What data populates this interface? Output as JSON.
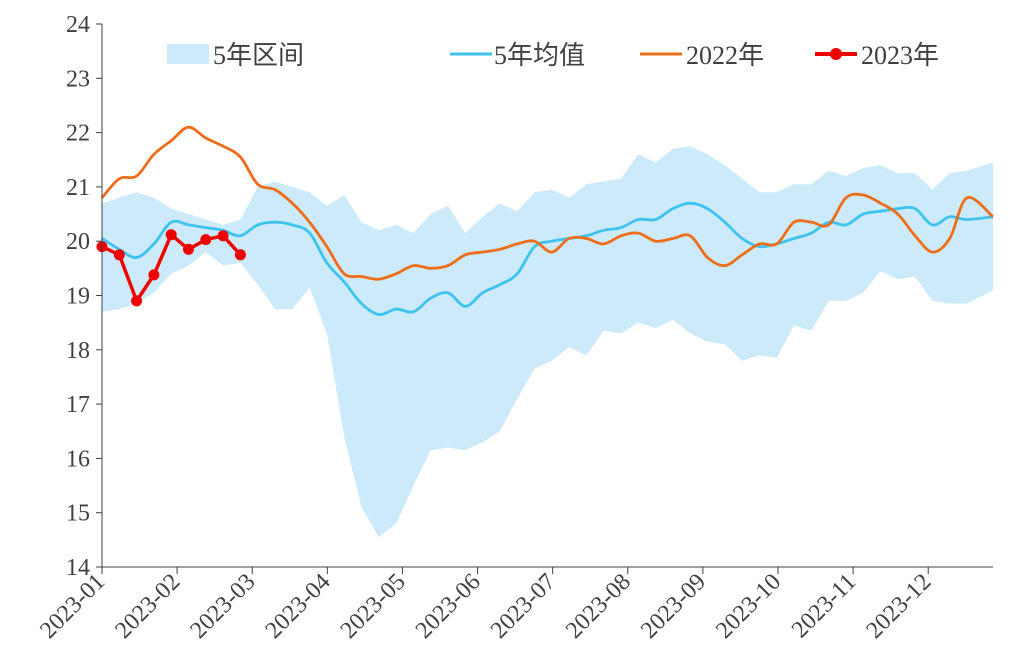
{
  "chart_data": {
    "type": "line",
    "title": "",
    "xlabel": "",
    "ylabel": "",
    "ylim": [
      14,
      24
    ],
    "y_ticks": [
      14,
      15,
      16,
      17,
      18,
      19,
      20,
      21,
      22,
      23,
      24
    ],
    "x_ticks": [
      "2023-01",
      "2023-02",
      "2023-03",
      "2023-04",
      "2023-05",
      "2023-06",
      "2023-07",
      "2023-08",
      "2023-09",
      "2023-10",
      "2023-11",
      "2023-12"
    ],
    "x_range_weeks": [
      0,
      51.5
    ],
    "grid": false,
    "legend_position": "top",
    "legend": {
      "band": "5年区间",
      "avg": "5年均值",
      "y2022": "2022年",
      "y2023": "2023年"
    },
    "colors": {
      "band": "#cdeafa",
      "avg": "#3ec3ee",
      "y2022": "#ee6d1a",
      "y2023": "#ee0000",
      "axis": "#404040"
    },
    "band": {
      "name": "5年区间",
      "upper": [
        [
          0,
          20.7
        ],
        [
          1,
          20.8
        ],
        [
          2,
          20.9
        ],
        [
          3,
          20.8
        ],
        [
          4,
          20.6
        ],
        [
          5,
          20.5
        ],
        [
          6,
          20.4
        ],
        [
          7,
          20.3
        ],
        [
          8,
          20.4
        ],
        [
          9,
          21.0
        ],
        [
          10,
          21.1
        ],
        [
          11,
          21.0
        ],
        [
          12,
          20.9
        ],
        [
          13,
          20.65
        ],
        [
          14,
          20.85
        ],
        [
          15,
          20.35
        ],
        [
          16,
          20.2
        ],
        [
          17,
          20.3
        ],
        [
          18,
          20.15
        ],
        [
          19,
          20.5
        ],
        [
          20,
          20.65
        ],
        [
          21,
          20.15
        ],
        [
          22,
          20.45
        ],
        [
          23,
          20.7
        ],
        [
          24,
          20.55
        ],
        [
          25,
          20.9
        ],
        [
          26,
          20.95
        ],
        [
          27,
          20.8
        ],
        [
          28,
          21.05
        ],
        [
          29,
          21.1
        ],
        [
          30,
          21.15
        ],
        [
          31,
          21.6
        ],
        [
          32,
          21.45
        ],
        [
          33,
          21.7
        ],
        [
          34,
          21.75
        ],
        [
          35,
          21.6
        ],
        [
          36,
          21.4
        ],
        [
          37,
          21.15
        ],
        [
          38,
          20.9
        ],
        [
          39,
          20.9
        ],
        [
          40,
          21.05
        ],
        [
          41,
          21.05
        ],
        [
          42,
          21.3
        ],
        [
          43,
          21.2
        ],
        [
          44,
          21.35
        ],
        [
          45,
          21.4
        ],
        [
          46,
          21.25
        ],
        [
          47,
          21.25
        ],
        [
          48,
          20.95
        ],
        [
          49,
          21.25
        ],
        [
          50,
          21.3
        ],
        [
          51.5,
          21.45
        ]
      ],
      "lower": [
        [
          0,
          18.7
        ],
        [
          1,
          18.75
        ],
        [
          2,
          18.85
        ],
        [
          3,
          19.05
        ],
        [
          4,
          19.4
        ],
        [
          5,
          19.55
        ],
        [
          6,
          19.8
        ],
        [
          7,
          19.55
        ],
        [
          8,
          19.6
        ],
        [
          9,
          19.2
        ],
        [
          10,
          18.75
        ],
        [
          11,
          18.75
        ],
        [
          12,
          19.15
        ],
        [
          13,
          18.3
        ],
        [
          14,
          16.4
        ],
        [
          15,
          15.1
        ],
        [
          16,
          14.55
        ],
        [
          17,
          14.8
        ],
        [
          18,
          15.5
        ],
        [
          19,
          16.15
        ],
        [
          20,
          16.2
        ],
        [
          21,
          16.15
        ],
        [
          22,
          16.3
        ],
        [
          23,
          16.5
        ],
        [
          24,
          17.1
        ],
        [
          25,
          17.65
        ],
        [
          26,
          17.8
        ],
        [
          27,
          18.05
        ],
        [
          28,
          17.9
        ],
        [
          29,
          18.35
        ],
        [
          30,
          18.3
        ],
        [
          31,
          18.5
        ],
        [
          32,
          18.4
        ],
        [
          33,
          18.55
        ],
        [
          34,
          18.3
        ],
        [
          35,
          18.15
        ],
        [
          36,
          18.1
        ],
        [
          37,
          17.8
        ],
        [
          38,
          17.9
        ],
        [
          39,
          17.85
        ],
        [
          40,
          18.45
        ],
        [
          41,
          18.35
        ],
        [
          42,
          18.9
        ],
        [
          43,
          18.9
        ],
        [
          44,
          19.05
        ],
        [
          45,
          19.45
        ],
        [
          46,
          19.3
        ],
        [
          47,
          19.35
        ],
        [
          48,
          18.9
        ],
        [
          49,
          18.85
        ],
        [
          50,
          18.85
        ],
        [
          51.5,
          19.1
        ]
      ]
    },
    "series": [
      {
        "name": "5年均值",
        "key": "avg",
        "points": [
          [
            0,
            20.05
          ],
          [
            1,
            19.85
          ],
          [
            2,
            19.7
          ],
          [
            3,
            19.95
          ],
          [
            4,
            20.35
          ],
          [
            5,
            20.3
          ],
          [
            6,
            20.25
          ],
          [
            7,
            20.2
          ],
          [
            8,
            20.1
          ],
          [
            9,
            20.3
          ],
          [
            10,
            20.35
          ],
          [
            11,
            20.3
          ],
          [
            12,
            20.15
          ],
          [
            13,
            19.6
          ],
          [
            14,
            19.25
          ],
          [
            15,
            18.85
          ],
          [
            16,
            18.65
          ],
          [
            17,
            18.75
          ],
          [
            18,
            18.7
          ],
          [
            19,
            18.95
          ],
          [
            20,
            19.05
          ],
          [
            21,
            18.8
          ],
          [
            22,
            19.05
          ],
          [
            23,
            19.2
          ],
          [
            24,
            19.4
          ],
          [
            25,
            19.9
          ],
          [
            26,
            20.0
          ],
          [
            27,
            20.05
          ],
          [
            28,
            20.1
          ],
          [
            29,
            20.2
          ],
          [
            30,
            20.25
          ],
          [
            31,
            20.4
          ],
          [
            32,
            20.4
          ],
          [
            33,
            20.6
          ],
          [
            34,
            20.7
          ],
          [
            35,
            20.6
          ],
          [
            36,
            20.35
          ],
          [
            37,
            20.05
          ],
          [
            38,
            19.9
          ],
          [
            39,
            19.95
          ],
          [
            40,
            20.05
          ],
          [
            41,
            20.15
          ],
          [
            42,
            20.35
          ],
          [
            43,
            20.3
          ],
          [
            44,
            20.5
          ],
          [
            45,
            20.55
          ],
          [
            46,
            20.6
          ],
          [
            47,
            20.6
          ],
          [
            48,
            20.3
          ],
          [
            49,
            20.45
          ],
          [
            50,
            20.4
          ],
          [
            51.5,
            20.45
          ]
        ]
      },
      {
        "name": "2022年",
        "key": "y2022",
        "points": [
          [
            0,
            20.8
          ],
          [
            1,
            21.15
          ],
          [
            2,
            21.2
          ],
          [
            3,
            21.6
          ],
          [
            4,
            21.85
          ],
          [
            5,
            22.1
          ],
          [
            6,
            21.9
          ],
          [
            7,
            21.75
          ],
          [
            8,
            21.55
          ],
          [
            9,
            21.05
          ],
          [
            10,
            20.95
          ],
          [
            11,
            20.7
          ],
          [
            12,
            20.35
          ],
          [
            13,
            19.9
          ],
          [
            14,
            19.4
          ],
          [
            15,
            19.35
          ],
          [
            16,
            19.3
          ],
          [
            17,
            19.4
          ],
          [
            18,
            19.55
          ],
          [
            19,
            19.5
          ],
          [
            20,
            19.55
          ],
          [
            21,
            19.75
          ],
          [
            22,
            19.8
          ],
          [
            23,
            19.85
          ],
          [
            24,
            19.95
          ],
          [
            25,
            20.0
          ],
          [
            26,
            19.8
          ],
          [
            27,
            20.05
          ],
          [
            28,
            20.05
          ],
          [
            29,
            19.95
          ],
          [
            30,
            20.1
          ],
          [
            31,
            20.15
          ],
          [
            32,
            20.0
          ],
          [
            33,
            20.05
          ],
          [
            34,
            20.1
          ],
          [
            35,
            19.7
          ],
          [
            36,
            19.55
          ],
          [
            37,
            19.75
          ],
          [
            38,
            19.95
          ],
          [
            39,
            19.95
          ],
          [
            40,
            20.35
          ],
          [
            41,
            20.35
          ],
          [
            42,
            20.3
          ],
          [
            43,
            20.8
          ],
          [
            44,
            20.85
          ],
          [
            45,
            20.7
          ],
          [
            46,
            20.5
          ],
          [
            47,
            20.1
          ],
          [
            48,
            19.8
          ],
          [
            49,
            20.05
          ],
          [
            50,
            20.8
          ],
          [
            51.5,
            20.45
          ]
        ]
      },
      {
        "name": "2023年",
        "key": "y2023",
        "markers": true,
        "points": [
          [
            0,
            19.9
          ],
          [
            1,
            19.75
          ],
          [
            2,
            18.9
          ],
          [
            3,
            19.38
          ],
          [
            4,
            20.12
          ],
          [
            5,
            19.85
          ],
          [
            6,
            20.03
          ],
          [
            7,
            20.1
          ],
          [
            8,
            19.75
          ]
        ]
      }
    ]
  }
}
